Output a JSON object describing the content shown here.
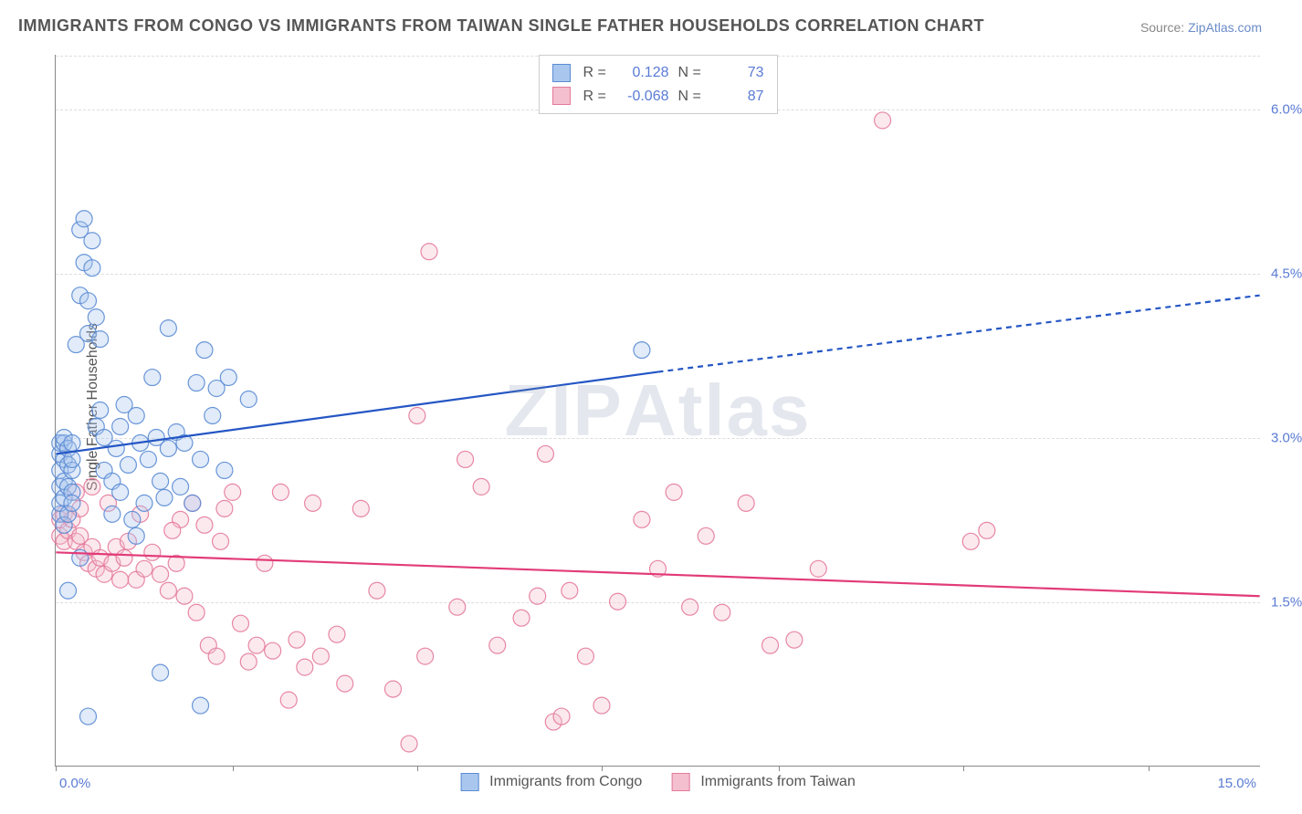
{
  "title": "IMMIGRANTS FROM CONGO VS IMMIGRANTS FROM TAIWAN SINGLE FATHER HOUSEHOLDS CORRELATION CHART",
  "source_prefix": "Source: ",
  "source_link": "ZipAtlas.com",
  "ylabel": "Single Father Households",
  "watermark": "ZIPAtlas",
  "chart": {
    "type": "scatter",
    "xlim": [
      0.0,
      15.0
    ],
    "ylim": [
      0.0,
      6.5
    ],
    "yticks": [
      1.5,
      3.0,
      4.5,
      6.0
    ],
    "ytick_labels": [
      "1.5%",
      "3.0%",
      "4.5%",
      "6.0%"
    ],
    "xtick_left": "0.0%",
    "xtick_right": "15.0%",
    "x_tick_positions": [
      0.0,
      2.2,
      4.5,
      6.8,
      9.0,
      11.3,
      13.6
    ],
    "background_color": "#ffffff",
    "grid_color": "#dddddd",
    "axis_color": "#888888",
    "label_color": "#5a7bd4",
    "title_color": "#555555",
    "title_fontsize": 18,
    "label_fontsize": 16,
    "tick_fontsize": 15,
    "marker_radius": 9,
    "marker_fill_opacity": 0.35,
    "series": [
      {
        "name": "Immigrants from Congo",
        "color_fill": "#a9c7ee",
        "color_stroke": "#5a8bd4",
        "R": "0.128",
        "N": "73",
        "trend": {
          "x1": 0.0,
          "y1": 2.85,
          "x2_solid": 7.5,
          "y2_solid": 3.6,
          "x2": 15.0,
          "y2": 4.3,
          "color": "#2456c4",
          "width": 2.2
        },
        "points": [
          [
            0.05,
            2.3
          ],
          [
            0.05,
            2.55
          ],
          [
            0.05,
            2.7
          ],
          [
            0.05,
            2.85
          ],
          [
            0.05,
            2.95
          ],
          [
            0.05,
            2.4
          ],
          [
            0.1,
            2.6
          ],
          [
            0.1,
            2.8
          ],
          [
            0.1,
            2.95
          ],
          [
            0.1,
            2.45
          ],
          [
            0.1,
            2.2
          ],
          [
            0.1,
            3.0
          ],
          [
            0.15,
            1.6
          ],
          [
            0.15,
            2.3
          ],
          [
            0.15,
            2.55
          ],
          [
            0.15,
            2.75
          ],
          [
            0.15,
            2.9
          ],
          [
            0.2,
            2.7
          ],
          [
            0.2,
            2.5
          ],
          [
            0.2,
            2.4
          ],
          [
            0.2,
            2.95
          ],
          [
            0.2,
            2.8
          ],
          [
            0.25,
            3.85
          ],
          [
            0.3,
            4.3
          ],
          [
            0.3,
            4.9
          ],
          [
            0.35,
            4.6
          ],
          [
            0.35,
            5.0
          ],
          [
            0.4,
            3.95
          ],
          [
            0.4,
            4.25
          ],
          [
            0.45,
            4.55
          ],
          [
            0.45,
            4.8
          ],
          [
            0.5,
            4.1
          ],
          [
            0.5,
            3.1
          ],
          [
            0.55,
            3.9
          ],
          [
            0.55,
            3.25
          ],
          [
            0.6,
            2.7
          ],
          [
            0.6,
            3.0
          ],
          [
            0.7,
            2.3
          ],
          [
            0.7,
            2.6
          ],
          [
            0.75,
            2.9
          ],
          [
            0.8,
            2.5
          ],
          [
            0.8,
            3.1
          ],
          [
            0.85,
            3.3
          ],
          [
            0.9,
            2.75
          ],
          [
            0.95,
            2.25
          ],
          [
            1.0,
            2.1
          ],
          [
            1.0,
            3.2
          ],
          [
            1.05,
            2.95
          ],
          [
            1.1,
            2.4
          ],
          [
            1.15,
            2.8
          ],
          [
            1.2,
            3.55
          ],
          [
            1.25,
            3.0
          ],
          [
            1.3,
            2.6
          ],
          [
            1.35,
            2.45
          ],
          [
            1.4,
            2.9
          ],
          [
            1.4,
            4.0
          ],
          [
            1.5,
            3.05
          ],
          [
            1.55,
            2.55
          ],
          [
            1.6,
            2.95
          ],
          [
            1.7,
            2.4
          ],
          [
            1.75,
            3.5
          ],
          [
            1.8,
            2.8
          ],
          [
            1.85,
            3.8
          ],
          [
            1.95,
            3.2
          ],
          [
            2.0,
            3.45
          ],
          [
            2.1,
            2.7
          ],
          [
            2.15,
            3.55
          ],
          [
            2.4,
            3.35
          ],
          [
            1.3,
            0.85
          ],
          [
            0.4,
            0.45
          ],
          [
            1.8,
            0.55
          ],
          [
            0.3,
            1.9
          ],
          [
            7.3,
            3.8
          ]
        ]
      },
      {
        "name": "Immigrants from Taiwan",
        "color_fill": "#f4bfcf",
        "color_stroke": "#e47a9c",
        "R": "-0.068",
        "N": "87",
        "trend": {
          "x1": 0.0,
          "y1": 1.95,
          "x2_solid": 15.0,
          "y2_solid": 1.55,
          "x2": 15.0,
          "y2": 1.55,
          "color": "#e23b77",
          "width": 2.2
        },
        "points": [
          [
            0.05,
            2.1
          ],
          [
            0.05,
            2.25
          ],
          [
            0.1,
            2.05
          ],
          [
            0.1,
            2.3
          ],
          [
            0.15,
            2.15
          ],
          [
            0.2,
            2.25
          ],
          [
            0.25,
            2.05
          ],
          [
            0.3,
            2.1
          ],
          [
            0.3,
            2.35
          ],
          [
            0.35,
            1.95
          ],
          [
            0.4,
            1.85
          ],
          [
            0.45,
            2.0
          ],
          [
            0.5,
            1.8
          ],
          [
            0.55,
            1.9
          ],
          [
            0.6,
            1.75
          ],
          [
            0.7,
            1.85
          ],
          [
            0.75,
            2.0
          ],
          [
            0.8,
            1.7
          ],
          [
            0.85,
            1.9
          ],
          [
            0.9,
            2.05
          ],
          [
            1.0,
            1.7
          ],
          [
            1.1,
            1.8
          ],
          [
            1.2,
            1.95
          ],
          [
            1.3,
            1.75
          ],
          [
            1.4,
            1.6
          ],
          [
            1.5,
            1.85
          ],
          [
            1.55,
            2.25
          ],
          [
            1.6,
            1.55
          ],
          [
            1.7,
            2.4
          ],
          [
            1.75,
            1.4
          ],
          [
            1.9,
            1.1
          ],
          [
            2.0,
            1.0
          ],
          [
            2.1,
            2.35
          ],
          [
            2.2,
            2.5
          ],
          [
            2.3,
            1.3
          ],
          [
            2.4,
            0.95
          ],
          [
            2.5,
            1.1
          ],
          [
            2.6,
            1.85
          ],
          [
            2.7,
            1.05
          ],
          [
            2.8,
            2.5
          ],
          [
            2.9,
            0.6
          ],
          [
            3.0,
            1.15
          ],
          [
            3.1,
            0.9
          ],
          [
            3.2,
            2.4
          ],
          [
            3.3,
            1.0
          ],
          [
            3.5,
            1.2
          ],
          [
            3.6,
            0.75
          ],
          [
            3.8,
            2.35
          ],
          [
            4.0,
            1.6
          ],
          [
            4.2,
            0.7
          ],
          [
            4.4,
            0.2
          ],
          [
            4.5,
            3.2
          ],
          [
            4.6,
            1.0
          ],
          [
            4.65,
            4.7
          ],
          [
            5.0,
            1.45
          ],
          [
            5.1,
            2.8
          ],
          [
            5.3,
            2.55
          ],
          [
            5.5,
            1.1
          ],
          [
            5.8,
            1.35
          ],
          [
            6.0,
            1.55
          ],
          [
            6.1,
            2.85
          ],
          [
            6.2,
            0.4
          ],
          [
            6.3,
            0.45
          ],
          [
            6.4,
            1.6
          ],
          [
            6.6,
            1.0
          ],
          [
            6.8,
            0.55
          ],
          [
            7.0,
            1.5
          ],
          [
            7.3,
            2.25
          ],
          [
            7.5,
            1.8
          ],
          [
            7.7,
            2.5
          ],
          [
            7.9,
            1.45
          ],
          [
            8.1,
            2.1
          ],
          [
            8.3,
            1.4
          ],
          [
            8.6,
            2.4
          ],
          [
            8.9,
            1.1
          ],
          [
            9.2,
            1.15
          ],
          [
            9.5,
            1.8
          ],
          [
            11.4,
            2.05
          ],
          [
            11.6,
            2.15
          ],
          [
            10.3,
            5.9
          ],
          [
            0.25,
            2.5
          ],
          [
            0.45,
            2.55
          ],
          [
            0.65,
            2.4
          ],
          [
            1.05,
            2.3
          ],
          [
            1.45,
            2.15
          ],
          [
            1.85,
            2.2
          ],
          [
            2.05,
            2.05
          ]
        ]
      }
    ],
    "legend": {
      "items": [
        {
          "label": "Immigrants from Congo",
          "fill": "#a9c7ee",
          "stroke": "#5a8bd4"
        },
        {
          "label": "Immigrants from Taiwan",
          "fill": "#f4bfcf",
          "stroke": "#e47a9c"
        }
      ]
    }
  }
}
